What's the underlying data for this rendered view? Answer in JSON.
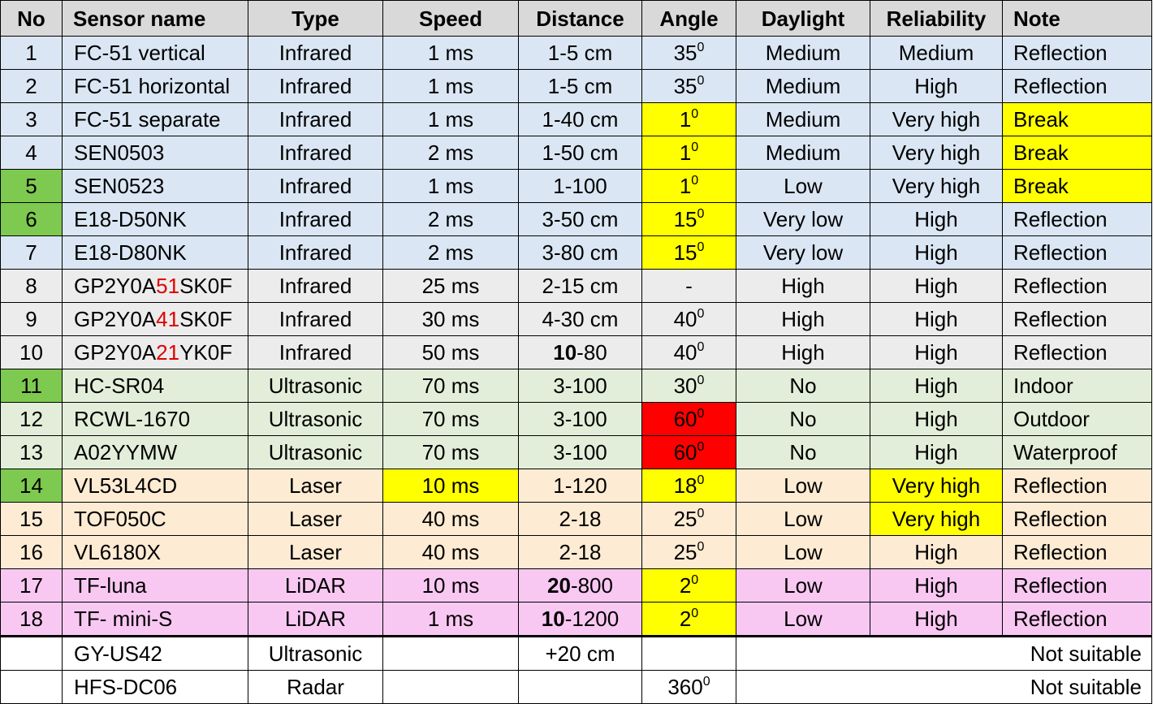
{
  "columns": [
    "No",
    "Sensor name",
    "Type",
    "Speed",
    "Distance",
    "Angle",
    "Daylight",
    "Reliability",
    "Note"
  ],
  "colors": {
    "infrared_group_1": "#dae6f3",
    "infrared_group_2": "#ececec",
    "ultrasonic_group": "#e2eed9",
    "laser_group": "#fdebd3",
    "lidar_group": "#f9c8f2",
    "highlight_yellow": "#ffff00",
    "highlight_red": "#ff0000",
    "highlight_green": "#7ec94f",
    "name_digits_red": "#e00000"
  },
  "rows": [
    {
      "no": "1",
      "name": [
        "FC-51 vertical"
      ],
      "type": "Infrared",
      "speed": "1 ms",
      "distance": [
        "",
        "1-5 cm"
      ],
      "angle": {
        "value": "35",
        "sup": "0"
      },
      "daylight": "Medium",
      "reliability": "Medium",
      "note": "Reflection",
      "group": "ir1",
      "hl": {}
    },
    {
      "no": "2",
      "name": [
        "FC-51 horizontal"
      ],
      "type": "Infrared",
      "speed": "1 ms",
      "distance": [
        "",
        "1-5 cm"
      ],
      "angle": {
        "value": "35",
        "sup": "0"
      },
      "daylight": "Medium",
      "reliability": "High",
      "note": "Reflection",
      "group": "ir1",
      "hl": {}
    },
    {
      "no": "3",
      "name": [
        "FC-51 separate"
      ],
      "type": "Infrared",
      "speed": "1 ms",
      "distance": [
        "",
        "1-40 cm"
      ],
      "angle": {
        "value": "1",
        "sup": "0"
      },
      "daylight": "Medium",
      "reliability": "Very high",
      "note": "Break",
      "group": "ir1",
      "hl": {
        "angle": "yellow",
        "note": "yellow"
      }
    },
    {
      "no": "4",
      "name": [
        "SEN0503"
      ],
      "type": "Infrared",
      "speed": "2 ms",
      "distance": [
        "",
        "1-50 cm"
      ],
      "angle": {
        "value": "1",
        "sup": "0"
      },
      "daylight": "Medium",
      "reliability": "Very high",
      "note": "Break",
      "group": "ir1",
      "hl": {
        "angle": "yellow",
        "note": "yellow"
      }
    },
    {
      "no": "5",
      "name": [
        "SEN0523"
      ],
      "type": "Infrared",
      "speed": "1 ms",
      "distance": [
        "",
        "1-100"
      ],
      "angle": {
        "value": "1",
        "sup": "0"
      },
      "daylight": "Low",
      "reliability": "Very high",
      "note": "Break",
      "group": "ir1",
      "hl": {
        "no": "green",
        "angle": "yellow",
        "note": "yellow"
      }
    },
    {
      "no": "6",
      "name": [
        "E18-D50NK"
      ],
      "type": "Infrared",
      "speed": "2 ms",
      "distance": [
        "",
        "3-50 cm"
      ],
      "angle": {
        "value": "15",
        "sup": "0"
      },
      "daylight": "Very low",
      "reliability": "High",
      "note": "Reflection",
      "group": "ir1",
      "hl": {
        "no": "green",
        "angle": "yellow"
      }
    },
    {
      "no": "7",
      "name": [
        "E18-D80NK"
      ],
      "type": "Infrared",
      "speed": "2 ms",
      "distance": [
        "",
        "3-80 cm"
      ],
      "angle": {
        "value": "15",
        "sup": "0"
      },
      "daylight": "Very low",
      "reliability": "High",
      "note": "Reflection",
      "group": "ir1",
      "hl": {
        "angle": "yellow"
      }
    },
    {
      "no": "8",
      "name": [
        "GP2Y0A",
        "51",
        "SK0F"
      ],
      "type": "Infrared",
      "speed": "25 ms",
      "distance": [
        "",
        "2-15 cm"
      ],
      "angle": {
        "value": "-",
        "sup": ""
      },
      "daylight": "High",
      "reliability": "High",
      "note": "Reflection",
      "group": "ir2",
      "hl": {}
    },
    {
      "no": "9",
      "name": [
        "GP2Y0A",
        "41",
        "SK0F"
      ],
      "type": "Infrared",
      "speed": "30 ms",
      "distance": [
        "",
        "4-30 cm"
      ],
      "angle": {
        "value": "40",
        "sup": "0"
      },
      "daylight": "High",
      "reliability": "High",
      "note": "Reflection",
      "group": "ir2",
      "hl": {}
    },
    {
      "no": "10",
      "name": [
        "GP2Y0A",
        "21",
        "YK0F"
      ],
      "type": "Infrared",
      "speed": "50 ms",
      "distance": [
        "10",
        "-80"
      ],
      "angle": {
        "value": "40",
        "sup": "0"
      },
      "daylight": "High",
      "reliability": "High",
      "note": "Reflection",
      "group": "ir2",
      "hl": {}
    },
    {
      "no": "11",
      "name": [
        "HC-SR04"
      ],
      "type": "Ultrasonic",
      "speed": "70 ms",
      "distance": [
        "",
        "3-100"
      ],
      "angle": {
        "value": "30",
        "sup": "0"
      },
      "daylight": "No",
      "reliability": "High",
      "note": "Indoor",
      "group": "us",
      "hl": {
        "no": "green"
      }
    },
    {
      "no": "12",
      "name": [
        "RCWL-1670"
      ],
      "type": "Ultrasonic",
      "speed": "70 ms",
      "distance": [
        "",
        "3-100"
      ],
      "angle": {
        "value": "60",
        "sup": "0"
      },
      "daylight": "No",
      "reliability": "High",
      "note": "Outdoor",
      "group": "us",
      "hl": {
        "angle": "red"
      }
    },
    {
      "no": "13",
      "name": [
        "A02YYMW"
      ],
      "type": "Ultrasonic",
      "speed": "70 ms",
      "distance": [
        "",
        "3-100"
      ],
      "angle": {
        "value": "60",
        "sup": "0"
      },
      "daylight": "No",
      "reliability": "High",
      "note": "Waterproof",
      "group": "us",
      "hl": {
        "angle": "red"
      }
    },
    {
      "no": "14",
      "name": [
        "VL53L4CD"
      ],
      "type": "Laser",
      "speed": "10 ms",
      "distance": [
        "",
        "1-120"
      ],
      "angle": {
        "value": "18",
        "sup": "0"
      },
      "daylight": "Low",
      "reliability": "Very high",
      "note": "Reflection",
      "group": "laser",
      "hl": {
        "no": "green",
        "speed": "yellow",
        "angle": "yellow",
        "reliability": "yellow"
      }
    },
    {
      "no": "15",
      "name": [
        "TOF050C"
      ],
      "type": "Laser",
      "speed": "40 ms",
      "distance": [
        "",
        "2-18"
      ],
      "angle": {
        "value": "25",
        "sup": "0"
      },
      "daylight": "Low",
      "reliability": "Very high",
      "note": "Reflection",
      "group": "laser",
      "hl": {
        "reliability": "yellow"
      }
    },
    {
      "no": "16",
      "name": [
        "VL6180X"
      ],
      "type": "Laser",
      "speed": "40 ms",
      "distance": [
        "",
        "2-18"
      ],
      "angle": {
        "value": "25",
        "sup": "0"
      },
      "daylight": "Low",
      "reliability": "High",
      "note": "Reflection",
      "group": "laser",
      "hl": {}
    },
    {
      "no": "17",
      "name": [
        "TF-luna"
      ],
      "type": "LiDAR",
      "speed": "10 ms",
      "distance": [
        "20",
        "-800"
      ],
      "angle": {
        "value": "2",
        "sup": "0"
      },
      "daylight": "Low",
      "reliability": "High",
      "note": "Reflection",
      "group": "lidar",
      "hl": {
        "angle": "yellow"
      }
    },
    {
      "no": "18",
      "name": [
        "TF- mini-S"
      ],
      "type": "LiDAR",
      "speed": "1 ms",
      "distance": [
        "10",
        "-1200"
      ],
      "angle": {
        "value": "2",
        "sup": "0"
      },
      "daylight": "Low",
      "reliability": "High",
      "note": "Reflection",
      "group": "lidar",
      "hl": {
        "angle": "yellow"
      }
    }
  ],
  "extra_rows": [
    {
      "no": "",
      "name": "GY-US42",
      "type": "Ultrasonic",
      "speed": "",
      "distance": "+20 cm",
      "angle": {
        "value": "",
        "sup": ""
      },
      "remark": "Not suitable"
    },
    {
      "no": "",
      "name": "HFS-DC06",
      "type": "Radar",
      "speed": "",
      "distance": "",
      "angle": {
        "value": "360",
        "sup": "0"
      },
      "remark": "Not suitable"
    }
  ]
}
